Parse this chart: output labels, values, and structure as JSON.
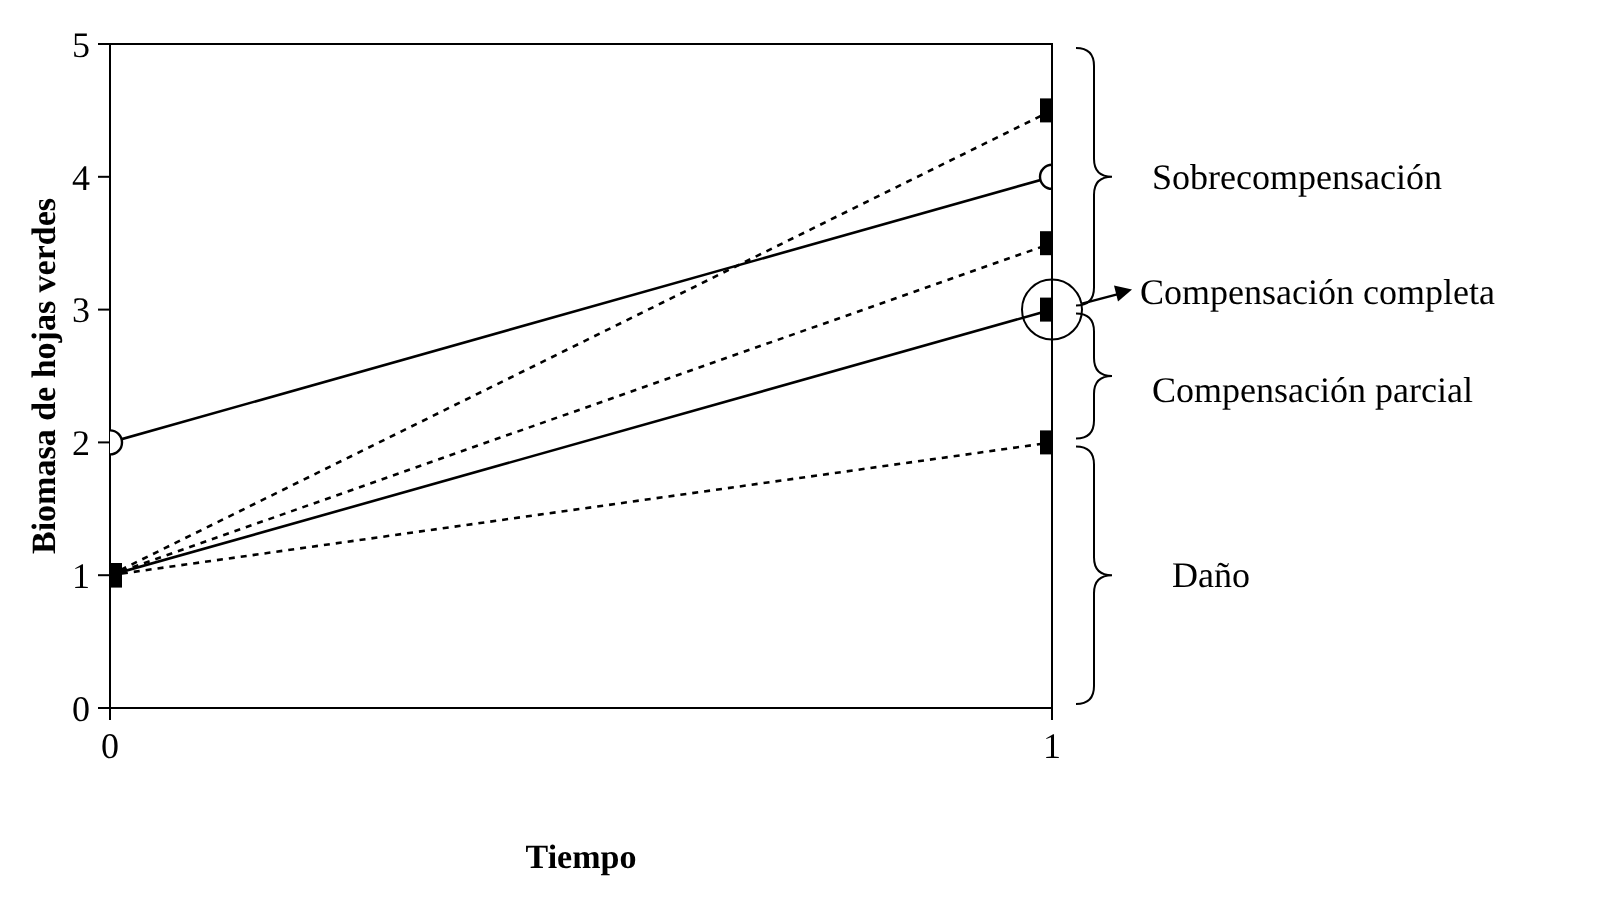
{
  "chart_data": {
    "type": "line",
    "xlabel": "Tiempo",
    "ylabel": "Biomasa de hojas verdes",
    "x": [
      0,
      1
    ],
    "xlim": [
      0,
      1
    ],
    "xticks": [
      0,
      1
    ],
    "ylim": [
      0,
      5
    ],
    "yticks": [
      0,
      1,
      2,
      3,
      4,
      5
    ],
    "series": [
      {
        "color": "#000000",
        "values": [
          2,
          4
        ],
        "marker": "circle",
        "line_style": "solid"
      },
      {
        "color": "#000000",
        "values": [
          1,
          3
        ],
        "marker": "square",
        "line_style": "solid"
      },
      {
        "color": "#000000",
        "values": [
          1,
          4.5
        ],
        "marker": "square",
        "line_style": "dotted"
      },
      {
        "color": "#000000",
        "values": [
          1,
          3.5
        ],
        "marker": "square",
        "line_style": "dotted"
      },
      {
        "color": "#000000",
        "values": [
          1,
          2
        ],
        "marker": "square",
        "line_style": "dotted"
      }
    ],
    "annotations": [
      "Sobrecompensación",
      {
        "text": "Compensación completa",
        "x": 1,
        "y": 3
      },
      "Compensación parcial",
      "Daño"
    ]
  }
}
